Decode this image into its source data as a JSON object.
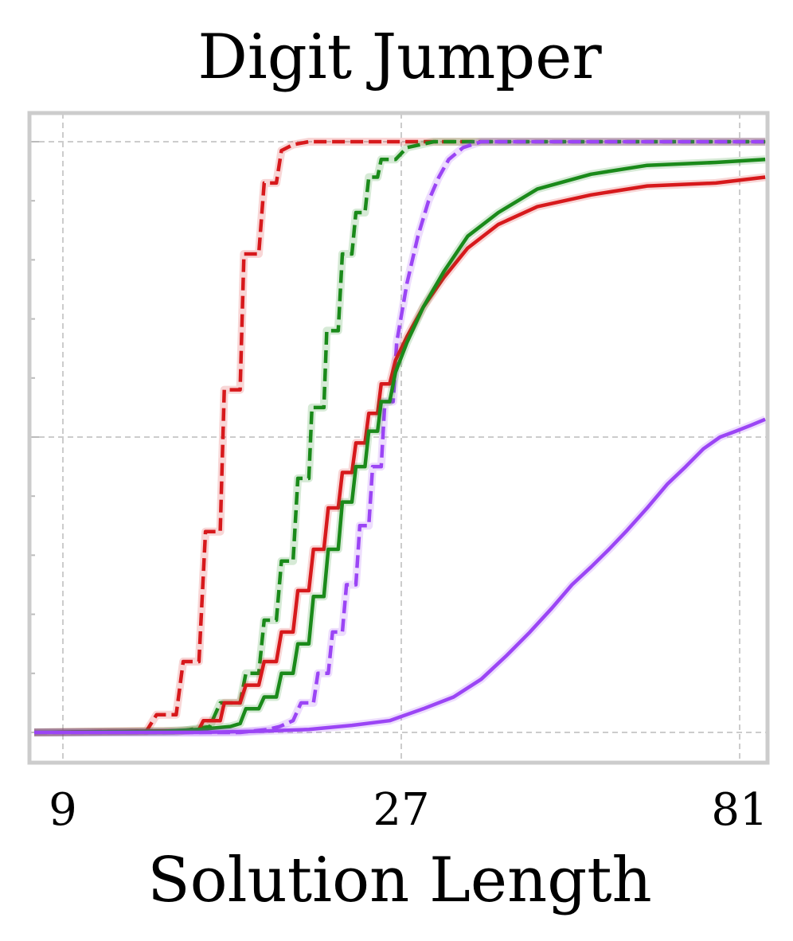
{
  "chart_data": {
    "type": "line",
    "title": "Digit Jumper",
    "xlabel": "Solution Length",
    "ylabel": "",
    "xscale": "log3",
    "xlim": [
      8.2,
      88
    ],
    "ylim": [
      -0.05,
      1.05
    ],
    "xticks": [
      9,
      27,
      81
    ],
    "xtick_labels": [
      "9",
      "27",
      "81"
    ],
    "yticks": [
      0,
      0.5,
      1.0
    ],
    "yminor_ticks": [
      0.1,
      0.2,
      0.3,
      0.4,
      0.6,
      0.7,
      0.8,
      0.9
    ],
    "ytick_labels_visible": false,
    "grid": true,
    "legend": "none",
    "colors": {
      "red": "#d7191c",
      "green": "#1a8a1a",
      "purple": "#9b45f5",
      "frame": "#cccccc",
      "grid": "#cccccc"
    },
    "series": [
      {
        "color": "#d7191c",
        "style": "dashed",
        "points": [
          [
            8.2,
            0
          ],
          [
            11.6,
            0.002
          ],
          [
            11.8,
            0.002
          ],
          [
            12.2,
            0.03
          ],
          [
            13.0,
            0.03
          ],
          [
            13.3,
            0.12
          ],
          [
            14.0,
            0.12
          ],
          [
            14.3,
            0.34
          ],
          [
            15.0,
            0.34
          ],
          [
            15.2,
            0.58
          ],
          [
            16.0,
            0.58
          ],
          [
            16.2,
            0.81
          ],
          [
            17.0,
            0.81
          ],
          [
            17.3,
            0.93
          ],
          [
            18.0,
            0.93
          ],
          [
            18.3,
            0.985
          ],
          [
            19.0,
            0.995
          ],
          [
            20.0,
            1.0
          ],
          [
            88,
            1.0
          ]
        ]
      },
      {
        "color": "#1a8a1a",
        "style": "dashed",
        "points": [
          [
            8.2,
            0
          ],
          [
            13.0,
            0.001
          ],
          [
            14.5,
            0.01
          ],
          [
            15.0,
            0.05
          ],
          [
            16.0,
            0.05
          ],
          [
            16.3,
            0.1
          ],
          [
            17.0,
            0.1
          ],
          [
            17.3,
            0.19
          ],
          [
            18.0,
            0.19
          ],
          [
            18.3,
            0.29
          ],
          [
            19.0,
            0.29
          ],
          [
            19.3,
            0.43
          ],
          [
            20.0,
            0.43
          ],
          [
            20.2,
            0.55
          ],
          [
            21.0,
            0.55
          ],
          [
            21.2,
            0.68
          ],
          [
            22.0,
            0.68
          ],
          [
            22.3,
            0.81
          ],
          [
            23.0,
            0.81
          ],
          [
            23.3,
            0.88
          ],
          [
            24.0,
            0.88
          ],
          [
            24.3,
            0.94
          ],
          [
            25.0,
            0.94
          ],
          [
            25.3,
            0.97
          ],
          [
            26.5,
            0.97
          ],
          [
            27.5,
            0.99
          ],
          [
            30.0,
            1.0
          ],
          [
            88,
            1.0
          ]
        ]
      },
      {
        "color": "#9b45f5",
        "style": "dashed",
        "points": [
          [
            8.2,
            0
          ],
          [
            16.0,
            0.0
          ],
          [
            17.5,
            0.005
          ],
          [
            18.2,
            0.01
          ],
          [
            19.0,
            0.02
          ],
          [
            19.5,
            0.05
          ],
          [
            20.3,
            0.05
          ],
          [
            20.6,
            0.1
          ],
          [
            21.3,
            0.1
          ],
          [
            21.6,
            0.17
          ],
          [
            22.3,
            0.17
          ],
          [
            22.6,
            0.25
          ],
          [
            23.3,
            0.25
          ],
          [
            23.6,
            0.35
          ],
          [
            24.3,
            0.35
          ],
          [
            24.6,
            0.45
          ],
          [
            25.3,
            0.45
          ],
          [
            25.6,
            0.56
          ],
          [
            26.3,
            0.56
          ],
          [
            26.6,
            0.66
          ],
          [
            27.5,
            0.76
          ],
          [
            28.5,
            0.84
          ],
          [
            29.5,
            0.9
          ],
          [
            30.5,
            0.94
          ],
          [
            31.5,
            0.97
          ],
          [
            33,
            0.99
          ],
          [
            35,
            1.0
          ],
          [
            88,
            1.0
          ]
        ]
      },
      {
        "color": "#d7191c",
        "style": "solid",
        "points": [
          [
            8.2,
            0
          ],
          [
            13.5,
            0.003
          ],
          [
            14.0,
            0.005
          ],
          [
            14.2,
            0.02
          ],
          [
            15.0,
            0.02
          ],
          [
            15.2,
            0.05
          ],
          [
            16.0,
            0.05
          ],
          [
            16.3,
            0.08
          ],
          [
            17.0,
            0.08
          ],
          [
            17.3,
            0.12
          ],
          [
            18.0,
            0.12
          ],
          [
            18.3,
            0.17
          ],
          [
            19.0,
            0.17
          ],
          [
            19.3,
            0.24
          ],
          [
            20.0,
            0.24
          ],
          [
            20.3,
            0.31
          ],
          [
            21.0,
            0.31
          ],
          [
            21.3,
            0.38
          ],
          [
            22.0,
            0.38
          ],
          [
            22.3,
            0.44
          ],
          [
            23.0,
            0.44
          ],
          [
            23.3,
            0.49
          ],
          [
            24.0,
            0.49
          ],
          [
            24.3,
            0.54
          ],
          [
            25.0,
            0.54
          ],
          [
            25.3,
            0.59
          ],
          [
            26.0,
            0.59
          ],
          [
            26.5,
            0.63
          ],
          [
            27.5,
            0.67
          ],
          [
            29.0,
            0.72
          ],
          [
            31.0,
            0.77
          ],
          [
            33.5,
            0.82
          ],
          [
            37,
            0.86
          ],
          [
            42,
            0.89
          ],
          [
            50,
            0.91
          ],
          [
            60,
            0.925
          ],
          [
            75,
            0.93
          ],
          [
            88,
            0.94
          ]
        ]
      },
      {
        "color": "#1a8a1a",
        "style": "solid",
        "points": [
          [
            8.2,
            0
          ],
          [
            12.5,
            0.002
          ],
          [
            14.0,
            0.005
          ],
          [
            15.5,
            0.01
          ],
          [
            16.0,
            0.015
          ],
          [
            16.3,
            0.04
          ],
          [
            17.0,
            0.04
          ],
          [
            17.3,
            0.06
          ],
          [
            18.0,
            0.06
          ],
          [
            18.3,
            0.1
          ],
          [
            19.0,
            0.1
          ],
          [
            19.3,
            0.15
          ],
          [
            20.0,
            0.15
          ],
          [
            20.3,
            0.23
          ],
          [
            21.0,
            0.23
          ],
          [
            21.3,
            0.31
          ],
          [
            22.0,
            0.31
          ],
          [
            22.3,
            0.39
          ],
          [
            23.0,
            0.39
          ],
          [
            23.3,
            0.45
          ],
          [
            24.0,
            0.45
          ],
          [
            24.3,
            0.51
          ],
          [
            25.0,
            0.51
          ],
          [
            25.3,
            0.56
          ],
          [
            26.0,
            0.56
          ],
          [
            26.5,
            0.61
          ],
          [
            27.5,
            0.66
          ],
          [
            29.0,
            0.72
          ],
          [
            31.0,
            0.78
          ],
          [
            33.5,
            0.84
          ],
          [
            37,
            0.88
          ],
          [
            42,
            0.92
          ],
          [
            50,
            0.945
          ],
          [
            60,
            0.96
          ],
          [
            75,
            0.965
          ],
          [
            88,
            0.97
          ]
        ]
      },
      {
        "color": "#9b45f5",
        "style": "solid",
        "points": [
          [
            8.2,
            0
          ],
          [
            14,
            0.0
          ],
          [
            17,
            0.002
          ],
          [
            20,
            0.005
          ],
          [
            23,
            0.012
          ],
          [
            26,
            0.02
          ],
          [
            29,
            0.04
          ],
          [
            32,
            0.06
          ],
          [
            35,
            0.09
          ],
          [
            38,
            0.13
          ],
          [
            41,
            0.17
          ],
          [
            44,
            0.21
          ],
          [
            47,
            0.25
          ],
          [
            50,
            0.28
          ],
          [
            53,
            0.31
          ],
          [
            56,
            0.34
          ],
          [
            60,
            0.38
          ],
          [
            64,
            0.42
          ],
          [
            68,
            0.45
          ],
          [
            72,
            0.48
          ],
          [
            76,
            0.5
          ],
          [
            80,
            0.51
          ],
          [
            84,
            0.52
          ],
          [
            88,
            0.53
          ]
        ]
      }
    ]
  }
}
